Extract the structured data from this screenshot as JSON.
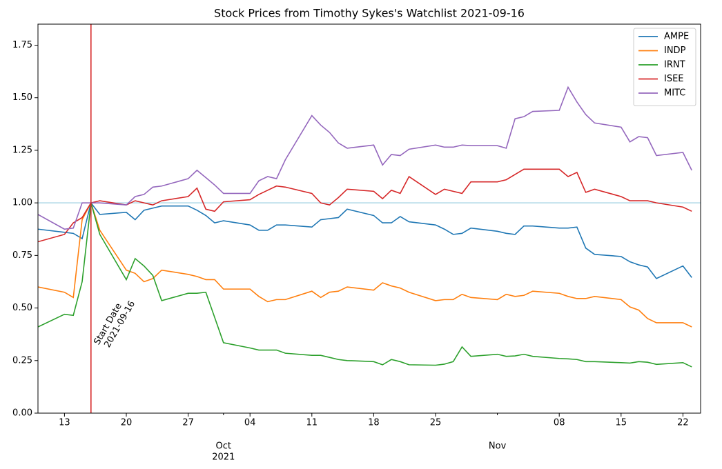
{
  "chart_data": {
    "type": "line",
    "title": "Stock Prices from Timothy Sykes's Watchlist 2021-09-16",
    "x": [
      "2021-09-10",
      "2021-09-13",
      "2021-09-14",
      "2021-09-15",
      "2021-09-16",
      "2021-09-17",
      "2021-09-20",
      "2021-09-21",
      "2021-09-22",
      "2021-09-23",
      "2021-09-24",
      "2021-09-27",
      "2021-09-28",
      "2021-09-29",
      "2021-09-30",
      "2021-10-01",
      "2021-10-04",
      "2021-10-05",
      "2021-10-06",
      "2021-10-07",
      "2021-10-08",
      "2021-10-11",
      "2021-10-12",
      "2021-10-13",
      "2021-10-14",
      "2021-10-15",
      "2021-10-18",
      "2021-10-19",
      "2021-10-20",
      "2021-10-21",
      "2021-10-22",
      "2021-10-25",
      "2021-10-26",
      "2021-10-27",
      "2021-10-28",
      "2021-10-29",
      "2021-11-01",
      "2021-11-02",
      "2021-11-03",
      "2021-11-04",
      "2021-11-05",
      "2021-11-08",
      "2021-11-09",
      "2021-11-10",
      "2021-11-11",
      "2021-11-12",
      "2021-11-15",
      "2021-11-16",
      "2021-11-17",
      "2021-11-18",
      "2021-11-19",
      "2021-11-22",
      "2021-11-23"
    ],
    "series": [
      {
        "name": "AMPE",
        "color": "#1f77b4",
        "values": [
          0.875,
          0.86,
          0.855,
          0.83,
          1.0,
          0.945,
          0.955,
          0.92,
          0.965,
          0.975,
          0.985,
          0.985,
          0.965,
          0.94,
          0.905,
          0.915,
          0.895,
          0.87,
          0.87,
          0.895,
          0.895,
          0.885,
          0.92,
          0.925,
          0.93,
          0.97,
          0.94,
          0.905,
          0.905,
          0.935,
          0.91,
          0.895,
          0.875,
          0.85,
          0.855,
          0.88,
          0.865,
          0.855,
          0.85,
          0.89,
          0.89,
          0.88,
          0.88,
          0.885,
          0.785,
          0.755,
          0.745,
          0.72,
          0.705,
          0.695,
          0.64,
          0.7,
          0.645
        ]
      },
      {
        "name": "INDP",
        "color": "#ff7f0e",
        "values": [
          0.6,
          0.575,
          0.55,
          0.92,
          1.0,
          0.87,
          0.68,
          0.665,
          0.625,
          0.64,
          0.68,
          0.66,
          0.65,
          0.635,
          0.635,
          0.59,
          0.59,
          0.555,
          0.53,
          0.54,
          0.54,
          0.58,
          0.55,
          0.575,
          0.58,
          0.6,
          0.585,
          0.62,
          0.605,
          0.595,
          0.575,
          0.535,
          0.54,
          0.54,
          0.565,
          0.55,
          0.54,
          0.565,
          0.555,
          0.56,
          0.58,
          0.57,
          0.555,
          0.545,
          0.545,
          0.555,
          0.54,
          0.505,
          0.49,
          0.45,
          0.43,
          0.43,
          0.41
        ]
      },
      {
        "name": "IRNT",
        "color": "#2ca02c",
        "values": [
          0.41,
          0.47,
          0.465,
          0.625,
          1.0,
          0.85,
          0.635,
          0.735,
          0.7,
          0.655,
          0.535,
          0.57,
          0.57,
          0.575,
          0.455,
          0.335,
          0.31,
          0.3,
          0.3,
          0.3,
          0.285,
          0.275,
          0.275,
          0.265,
          0.255,
          0.25,
          0.245,
          0.23,
          0.255,
          0.245,
          0.23,
          0.228,
          0.233,
          0.245,
          0.315,
          0.27,
          0.28,
          0.27,
          0.272,
          0.28,
          0.27,
          0.26,
          0.258,
          0.255,
          0.245,
          0.245,
          0.24,
          0.238,
          0.245,
          0.242,
          0.232,
          0.24,
          0.22
        ]
      },
      {
        "name": "ISEE",
        "color": "#d62728",
        "values": [
          0.815,
          0.85,
          0.905,
          0.93,
          1.0,
          1.01,
          0.99,
          1.01,
          1.0,
          0.99,
          1.01,
          1.03,
          1.07,
          0.97,
          0.96,
          1.005,
          1.015,
          1.04,
          1.06,
          1.08,
          1.075,
          1.045,
          1.0,
          0.99,
          1.025,
          1.065,
          1.055,
          1.02,
          1.06,
          1.045,
          1.125,
          1.04,
          1.065,
          1.055,
          1.045,
          1.1,
          1.1,
          1.11,
          1.135,
          1.16,
          1.16,
          1.16,
          1.125,
          1.145,
          1.05,
          1.065,
          1.03,
          1.01,
          1.01,
          1.01,
          1.0,
          0.98,
          0.96
        ]
      },
      {
        "name": "MITC",
        "color": "#9467bd",
        "values": [
          0.945,
          0.875,
          0.88,
          1.0,
          1.0,
          1.0,
          0.99,
          1.03,
          1.04,
          1.075,
          1.08,
          1.115,
          1.155,
          1.12,
          1.085,
          1.045,
          1.045,
          1.105,
          1.125,
          1.115,
          1.205,
          1.415,
          1.37,
          1.335,
          1.285,
          1.26,
          1.275,
          1.18,
          1.23,
          1.225,
          1.255,
          1.275,
          1.265,
          1.265,
          1.275,
          1.272,
          1.272,
          1.26,
          1.4,
          1.41,
          1.435,
          1.44,
          1.55,
          1.48,
          1.42,
          1.38,
          1.36,
          1.29,
          1.315,
          1.31,
          1.225,
          1.24,
          1.155
        ]
      }
    ],
    "xlim": [
      "2021-09-10",
      "2021-11-24"
    ],
    "xticks": [
      {
        "value": "2021-09-13",
        "label": "13"
      },
      {
        "value": "2021-09-20",
        "label": "20"
      },
      {
        "value": "2021-09-27",
        "label": "27"
      },
      {
        "value": "2021-10-04",
        "label": "04"
      },
      {
        "value": "2021-10-11",
        "label": "11"
      },
      {
        "value": "2021-10-18",
        "label": "18"
      },
      {
        "value": "2021-10-25",
        "label": "25"
      },
      {
        "value": "2021-11-08",
        "label": "08"
      },
      {
        "value": "2021-11-15",
        "label": "15"
      },
      {
        "value": "2021-11-22",
        "label": "22"
      }
    ],
    "month_ticks": [
      {
        "value": "2021-10-01",
        "label": "Oct"
      },
      {
        "value": "2021-11-01",
        "label": "Nov"
      }
    ],
    "year_label": "2021",
    "ylim": [
      0,
      1.85
    ],
    "yticks": [
      {
        "value": 0,
        "label": "0.00"
      },
      {
        "value": 0.25,
        "label": "0.25"
      },
      {
        "value": 0.5,
        "label": "0.50"
      },
      {
        "value": 0.75,
        "label": "0.75"
      },
      {
        "value": 1,
        "label": "1.00"
      },
      {
        "value": 1.25,
        "label": "1.25"
      },
      {
        "value": 1.5,
        "label": "1.50"
      },
      {
        "value": 1.75,
        "label": "1.75"
      }
    ],
    "hline": {
      "value": 1,
      "color": "#add8e6"
    },
    "start_date": "2021-09-16",
    "start_color": "#d62728",
    "annotation_label": "Start Date",
    "legend": "upper right"
  }
}
